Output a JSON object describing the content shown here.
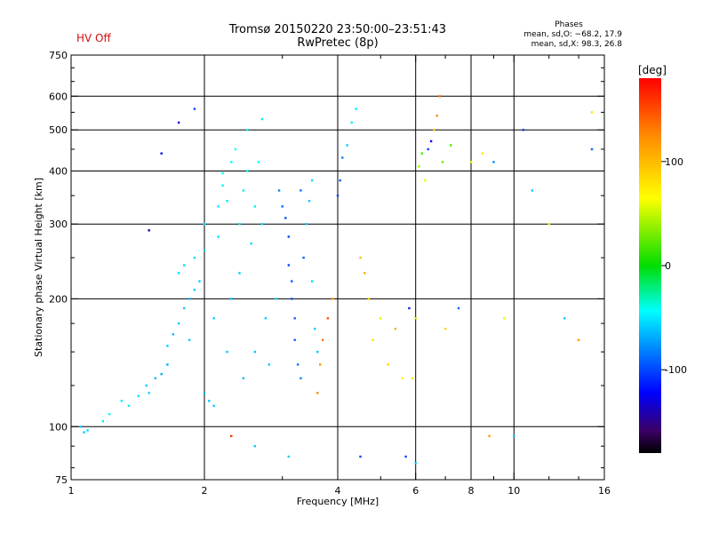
{
  "header": {
    "status": "HV Off",
    "title_line1": "Tromsø 20150220 23:50:00–23:51:43",
    "title_line2": "RwPretec (8p)",
    "stats_heading": "Phases",
    "stats_o": "mean, sd,O: −68.2, 17.9",
    "stats_x": "mean, sd,X:  98.3, 26.8"
  },
  "colors": {
    "status": "#d01010",
    "grid": "#000000"
  },
  "colorbar": {
    "unit_label": "[deg]",
    "range": [
      -180,
      180
    ],
    "tick_values": [
      100,
      0,
      -100
    ],
    "tick_labels": [
      "100",
      "0",
      "-100"
    ]
  },
  "chart_data": {
    "type": "scatter",
    "xlabel": "Frequency [MHz]",
    "ylabel": "Stationary phase Virtual Height [km]",
    "xscale": "log",
    "yscale": "log",
    "xlim": [
      1,
      16
    ],
    "ylim": [
      75,
      750
    ],
    "xticks": [
      1,
      2,
      4,
      6,
      8,
      10,
      16
    ],
    "xtick_labels": [
      "1",
      "2",
      "4",
      "6",
      "8",
      "10",
      "16"
    ],
    "x_gridlines": [
      2,
      4,
      6,
      8,
      10
    ],
    "x_minor_ticks": [
      3,
      5,
      7,
      9,
      12,
      14
    ],
    "yticks": [
      75,
      100,
      200,
      300,
      400,
      500,
      600,
      750
    ],
    "ytick_labels": [
      "75",
      "100",
      "200",
      "300",
      "400",
      "500",
      "600",
      "750"
    ],
    "y_gridlines": [
      100,
      200,
      300,
      400,
      500,
      600
    ],
    "grid": true,
    "points": [
      [
        1.05,
        100,
        -60
      ],
      [
        1.07,
        97,
        -60
      ],
      [
        1.09,
        98,
        -55
      ],
      [
        1.18,
        103,
        -50
      ],
      [
        1.22,
        107,
        -45
      ],
      [
        1.3,
        115,
        -50
      ],
      [
        1.35,
        112,
        -50
      ],
      [
        1.42,
        118,
        -55
      ],
      [
        1.48,
        125,
        -60
      ],
      [
        1.5,
        120,
        -55
      ],
      [
        1.55,
        130,
        -65
      ],
      [
        1.6,
        133,
        -70
      ],
      [
        1.65,
        140,
        -70
      ],
      [
        1.65,
        155,
        -60
      ],
      [
        1.7,
        165,
        -65
      ],
      [
        1.75,
        175,
        -60
      ],
      [
        1.75,
        230,
        -55
      ],
      [
        1.8,
        240,
        -55
      ],
      [
        1.8,
        190,
        -60
      ],
      [
        1.85,
        200,
        -65
      ],
      [
        1.85,
        160,
        -60
      ],
      [
        1.9,
        210,
        -60
      ],
      [
        1.9,
        250,
        -55
      ],
      [
        1.95,
        220,
        -60
      ],
      [
        2.0,
        260,
        -55
      ],
      [
        2.0,
        300,
        -50
      ],
      [
        2.0,
        120,
        -65
      ],
      [
        2.05,
        115,
        -60
      ],
      [
        2.1,
        112,
        -60
      ],
      [
        2.1,
        180,
        -60
      ],
      [
        2.15,
        280,
        -55
      ],
      [
        2.15,
        330,
        -50
      ],
      [
        2.2,
        370,
        -50
      ],
      [
        2.2,
        395,
        -45
      ],
      [
        2.25,
        340,
        -50
      ],
      [
        2.25,
        150,
        -60
      ],
      [
        2.3,
        200,
        -60
      ],
      [
        2.3,
        420,
        -45
      ],
      [
        2.35,
        450,
        -45
      ],
      [
        2.4,
        230,
        -60
      ],
      [
        2.4,
        300,
        -55
      ],
      [
        2.45,
        360,
        -50
      ],
      [
        2.45,
        130,
        -65
      ],
      [
        2.5,
        500,
        -40
      ],
      [
        2.5,
        400,
        -45
      ],
      [
        2.55,
        270,
        -55
      ],
      [
        2.6,
        150,
        -60
      ],
      [
        2.6,
        330,
        -50
      ],
      [
        2.65,
        420,
        -45
      ],
      [
        2.7,
        530,
        -40
      ],
      [
        2.7,
        300,
        -55
      ],
      [
        2.75,
        180,
        -60
      ],
      [
        2.8,
        140,
        -60
      ],
      [
        2.9,
        200,
        -55
      ],
      [
        2.95,
        360,
        -80
      ],
      [
        3.0,
        330,
        -90
      ],
      [
        3.05,
        310,
        -95
      ],
      [
        3.1,
        280,
        -100
      ],
      [
        3.1,
        240,
        -100
      ],
      [
        3.15,
        220,
        -95
      ],
      [
        3.15,
        200,
        -95
      ],
      [
        3.2,
        180,
        -90
      ],
      [
        3.2,
        160,
        -90
      ],
      [
        3.25,
        140,
        -85
      ],
      [
        3.3,
        130,
        -80
      ],
      [
        3.3,
        360,
        -85
      ],
      [
        3.35,
        250,
        -90
      ],
      [
        3.4,
        300,
        -60
      ],
      [
        3.45,
        340,
        -60
      ],
      [
        3.5,
        380,
        -55
      ],
      [
        3.5,
        220,
        -55
      ],
      [
        3.55,
        170,
        -60
      ],
      [
        3.6,
        150,
        -60
      ],
      [
        3.6,
        120,
        130
      ],
      [
        3.65,
        140,
        120
      ],
      [
        3.7,
        160,
        140
      ],
      [
        3.8,
        180,
        150
      ],
      [
        3.9,
        200,
        120
      ],
      [
        4.0,
        350,
        -100
      ],
      [
        4.05,
        380,
        -90
      ],
      [
        4.1,
        430,
        -80
      ],
      [
        4.2,
        460,
        -60
      ],
      [
        4.3,
        520,
        -50
      ],
      [
        4.4,
        560,
        -50
      ],
      [
        4.5,
        250,
        100
      ],
      [
        4.6,
        230,
        110
      ],
      [
        4.7,
        200,
        90
      ],
      [
        4.8,
        160,
        80
      ],
      [
        5.0,
        180,
        60
      ],
      [
        5.2,
        140,
        90
      ],
      [
        5.4,
        170,
        110
      ],
      [
        5.6,
        130,
        70
      ],
      [
        5.8,
        190,
        -110
      ],
      [
        5.9,
        130,
        80
      ],
      [
        6.0,
        180,
        50
      ],
      [
        6.1,
        410,
        40
      ],
      [
        6.2,
        440,
        20
      ],
      [
        6.3,
        380,
        60
      ],
      [
        6.4,
        450,
        -100
      ],
      [
        6.5,
        470,
        -120
      ],
      [
        6.6,
        500,
        100
      ],
      [
        6.7,
        540,
        130
      ],
      [
        6.8,
        600,
        140
      ],
      [
        6.9,
        420,
        30
      ],
      [
        7.0,
        170,
        90
      ],
      [
        7.2,
        460,
        20
      ],
      [
        7.5,
        190,
        -90
      ],
      [
        8.0,
        420,
        60
      ],
      [
        8.5,
        440,
        80
      ],
      [
        9.0,
        420,
        -80
      ],
      [
        9.5,
        180,
        60
      ],
      [
        10.5,
        500,
        -100
      ],
      [
        11.0,
        360,
        -60
      ],
      [
        12.0,
        300,
        60
      ],
      [
        13.0,
        180,
        -60
      ],
      [
        14.0,
        160,
        120
      ],
      [
        15.0,
        550,
        80
      ],
      [
        15.0,
        450,
        -90
      ],
      [
        1.9,
        560,
        -100
      ],
      [
        1.75,
        520,
        -130
      ],
      [
        1.6,
        440,
        -120
      ],
      [
        1.5,
        290,
        -140
      ],
      [
        2.3,
        95,
        160
      ],
      [
        2.6,
        90,
        -60
      ],
      [
        3.1,
        85,
        -60
      ],
      [
        4.5,
        85,
        -100
      ],
      [
        5.7,
        85,
        -100
      ],
      [
        6.0,
        82,
        -60
      ],
      [
        8.8,
        95,
        120
      ],
      [
        10.0,
        95,
        -60
      ]
    ]
  }
}
